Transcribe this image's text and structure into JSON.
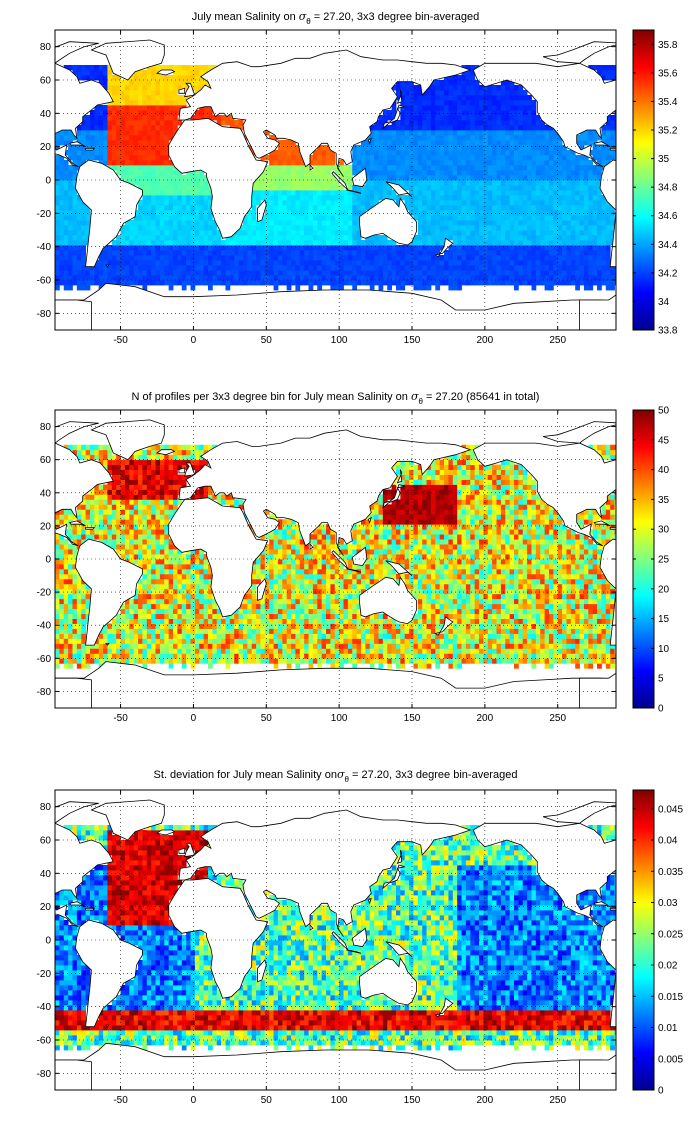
{
  "chart_data": [
    {
      "type": "heatmap",
      "title": {
        "pre": "July mean Salinity on ",
        "sigma": "σ",
        "sub": "θ",
        "post": " = 27.20, 3x3 degree bin-averaged"
      },
      "x_ticks": [
        -50,
        0,
        50,
        100,
        150,
        200,
        250
      ],
      "y_ticks": [
        80,
        60,
        40,
        20,
        0,
        -20,
        -40,
        -60,
        -80
      ],
      "xlim": [
        -95,
        290
      ],
      "ylim": [
        -90,
        90
      ],
      "grid": true,
      "colorbar": {
        "min": 33.8,
        "max": 35.9,
        "ticks": [
          35.8,
          35.6,
          35.4,
          35.2,
          35,
          34.8,
          34.6,
          34.4,
          34.2,
          34,
          33.8
        ]
      },
      "field": "salinity"
    },
    {
      "type": "heatmap",
      "title": {
        "pre": "N of profiles per 3x3 degree bin for July mean Salinity on ",
        "sigma": "σ",
        "sub": "θ",
        "post": " = 27.20 (85641 in total)"
      },
      "x_ticks": [
        -50,
        0,
        50,
        100,
        150,
        200,
        250
      ],
      "y_ticks": [
        80,
        60,
        40,
        20,
        0,
        -20,
        -40,
        -60,
        -80
      ],
      "xlim": [
        -95,
        290
      ],
      "ylim": [
        -90,
        90
      ],
      "grid": true,
      "colorbar": {
        "min": 0,
        "max": 50,
        "ticks": [
          50,
          45,
          40,
          35,
          30,
          25,
          20,
          15,
          10,
          5,
          0
        ]
      },
      "field": "count"
    },
    {
      "type": "heatmap",
      "title": {
        "pre": "St. deviation for July mean Salinity on",
        "sigma": "σ",
        "sub": "θ",
        "post": " = 27.20, 3x3 degree bin-averaged"
      },
      "x_ticks": [
        -50,
        0,
        50,
        100,
        150,
        200,
        250
      ],
      "y_ticks": [
        80,
        60,
        40,
        20,
        0,
        -20,
        -40,
        -60,
        -80
      ],
      "xlim": [
        -95,
        290
      ],
      "ylim": [
        -90,
        90
      ],
      "grid": true,
      "colorbar": {
        "min": 0,
        "max": 0.048,
        "ticks": [
          0.045,
          0.04,
          0.035,
          0.03,
          0.025,
          0.02,
          0.015,
          0.01,
          0.005,
          0
        ]
      },
      "field": "stdev"
    }
  ]
}
